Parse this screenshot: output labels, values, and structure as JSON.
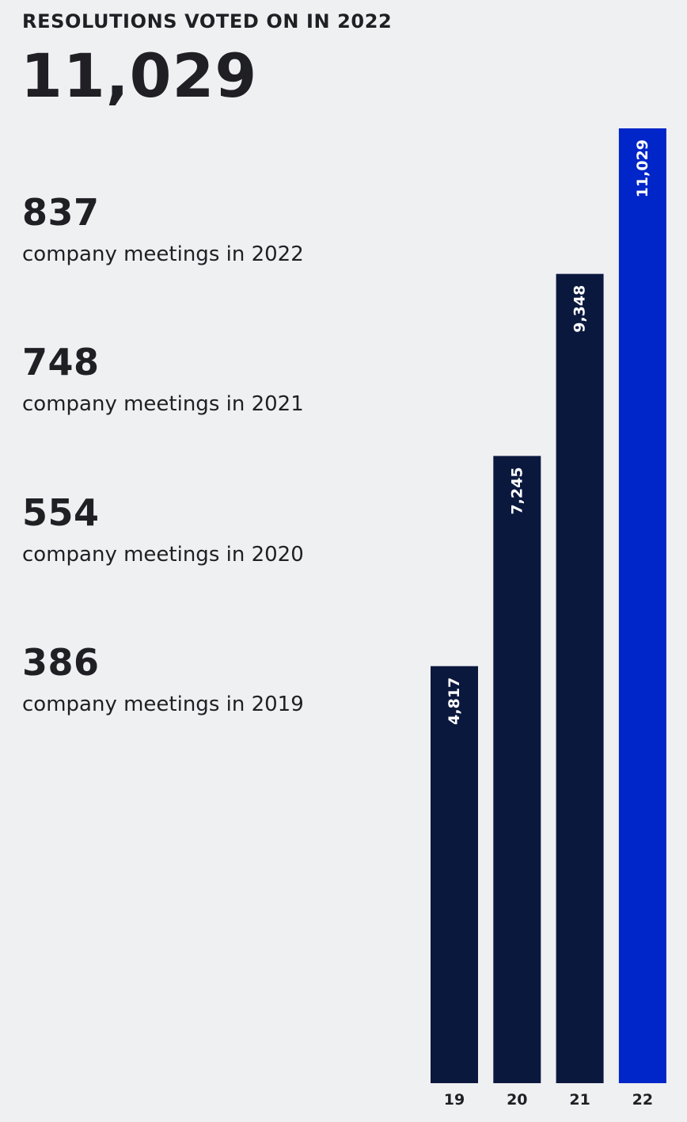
{
  "header": {
    "title": "RESOLUTIONS VOTED ON IN 2022",
    "total": "11,029"
  },
  "stats": [
    {
      "value": "837",
      "label": "company meetings in 2022"
    },
    {
      "value": "748",
      "label": "company meetings in 2021"
    },
    {
      "value": "554",
      "label": "company meetings in 2020"
    },
    {
      "value": "386",
      "label": "company meetings in 2019"
    }
  ],
  "chart_data": {
    "type": "bar",
    "categories": [
      "19",
      "20",
      "21",
      "22"
    ],
    "values": [
      4817,
      7245,
      9348,
      11029
    ],
    "data_labels": [
      "4,817",
      "7,245",
      "9,348",
      "11,029"
    ],
    "title": "",
    "xlabel": "",
    "ylabel": "",
    "ylim": [
      0,
      11029
    ],
    "grid": false,
    "colors": [
      "#0b183e",
      "#0b183e",
      "#0b183e",
      "#0025c8"
    ],
    "label_color": "#ffffff",
    "tick_label_color": "#1f1f24"
  }
}
